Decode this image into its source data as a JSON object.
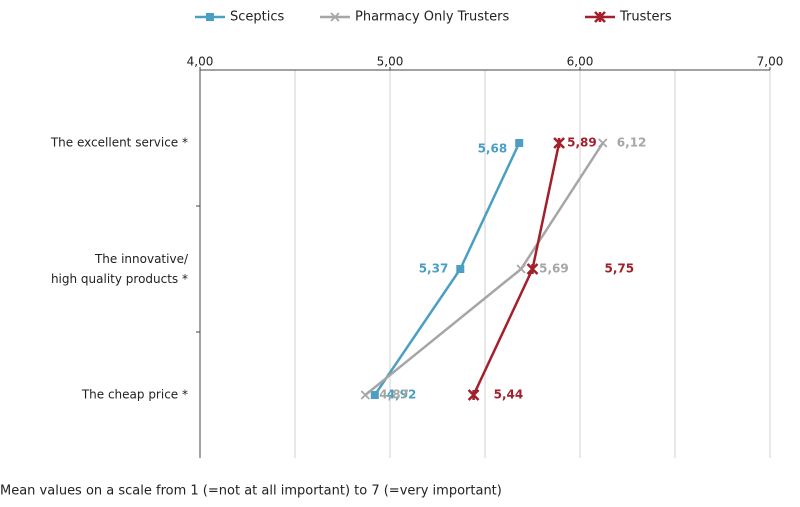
{
  "chart_data": {
    "type": "line",
    "orientation": "horizontal",
    "categories": [
      "The excellent service *",
      "The innovative/\nhigh quality products *",
      "The cheap price *"
    ],
    "series": [
      {
        "name": "Sceptics",
        "color": "#4a9fc2",
        "marker": "square",
        "values": [
          5.68,
          5.37,
          4.92
        ],
        "value_labels": [
          "5,68",
          "5,37",
          "4,92"
        ]
      },
      {
        "name": "Pharmacy Only Trusters",
        "color": "#a6a6a6",
        "marker": "x",
        "values": [
          6.12,
          5.69,
          4.87
        ],
        "value_labels": [
          "6,12",
          "5,69",
          "4,87"
        ]
      },
      {
        "name": "Trusters",
        "color": "#a2202b",
        "marker": "star",
        "values": [
          5.89,
          5.75,
          5.44
        ],
        "value_labels": [
          "5,89",
          "5,75",
          "5,44"
        ]
      }
    ],
    "xlim": [
      4,
      7
    ],
    "xticks": [
      {
        "value": 4,
        "label": "4,00"
      },
      {
        "value": 5,
        "label": "5,00"
      },
      {
        "value": 6,
        "label": "6,00"
      },
      {
        "value": 7,
        "label": "7,00"
      }
    ],
    "xgrid": [
      4.5,
      5,
      5.5,
      6,
      6.5,
      7
    ],
    "legend": "top",
    "note": "Mean values on a scale from 1 (=not at all important) to 7 (=very important)"
  }
}
